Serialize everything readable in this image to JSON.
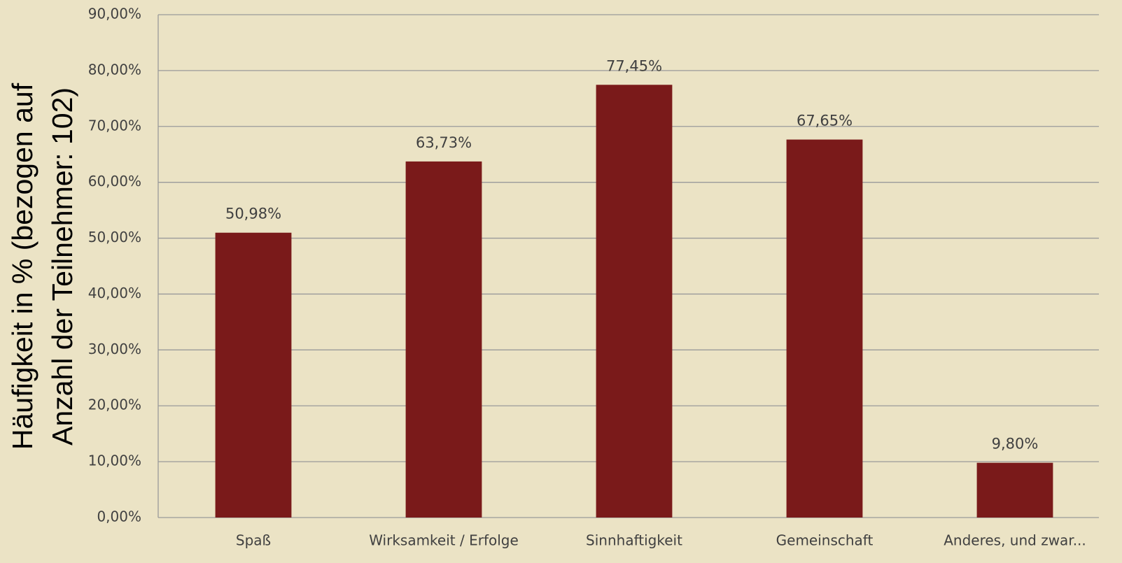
{
  "chart_data": {
    "type": "bar",
    "y_axis_label": [
      "Häufigkeit in % (bezogen auf",
      "Anzahl der Teilnehmer: 102)"
    ],
    "categories": [
      "Spaß",
      "Wirksamkeit / Erfolge",
      "Sinnhaftigkeit",
      "Gemeinschaft",
      "Anderes, und zwar..."
    ],
    "values": [
      50.98,
      63.73,
      77.45,
      67.65,
      9.8
    ],
    "value_labels": [
      "50,98%",
      "63,73%",
      "77,45%",
      "67,65%",
      "9,80%"
    ],
    "color": "#7a1a1a",
    "ylim": [
      0,
      90
    ],
    "yticks": [
      {
        "value": 0,
        "label": "0,00%"
      },
      {
        "value": 10,
        "label": "10,00%"
      },
      {
        "value": 20,
        "label": "20,00%"
      },
      {
        "value": 30,
        "label": "30,00%"
      },
      {
        "value": 40,
        "label": "40,00%"
      },
      {
        "value": 50,
        "label": "50,00%"
      },
      {
        "value": 60,
        "label": "60,00%"
      },
      {
        "value": 70,
        "label": "70,00%"
      },
      {
        "value": 80,
        "label": "80,00%"
      },
      {
        "value": 90,
        "label": "90,00%"
      }
    ],
    "grid": true
  }
}
